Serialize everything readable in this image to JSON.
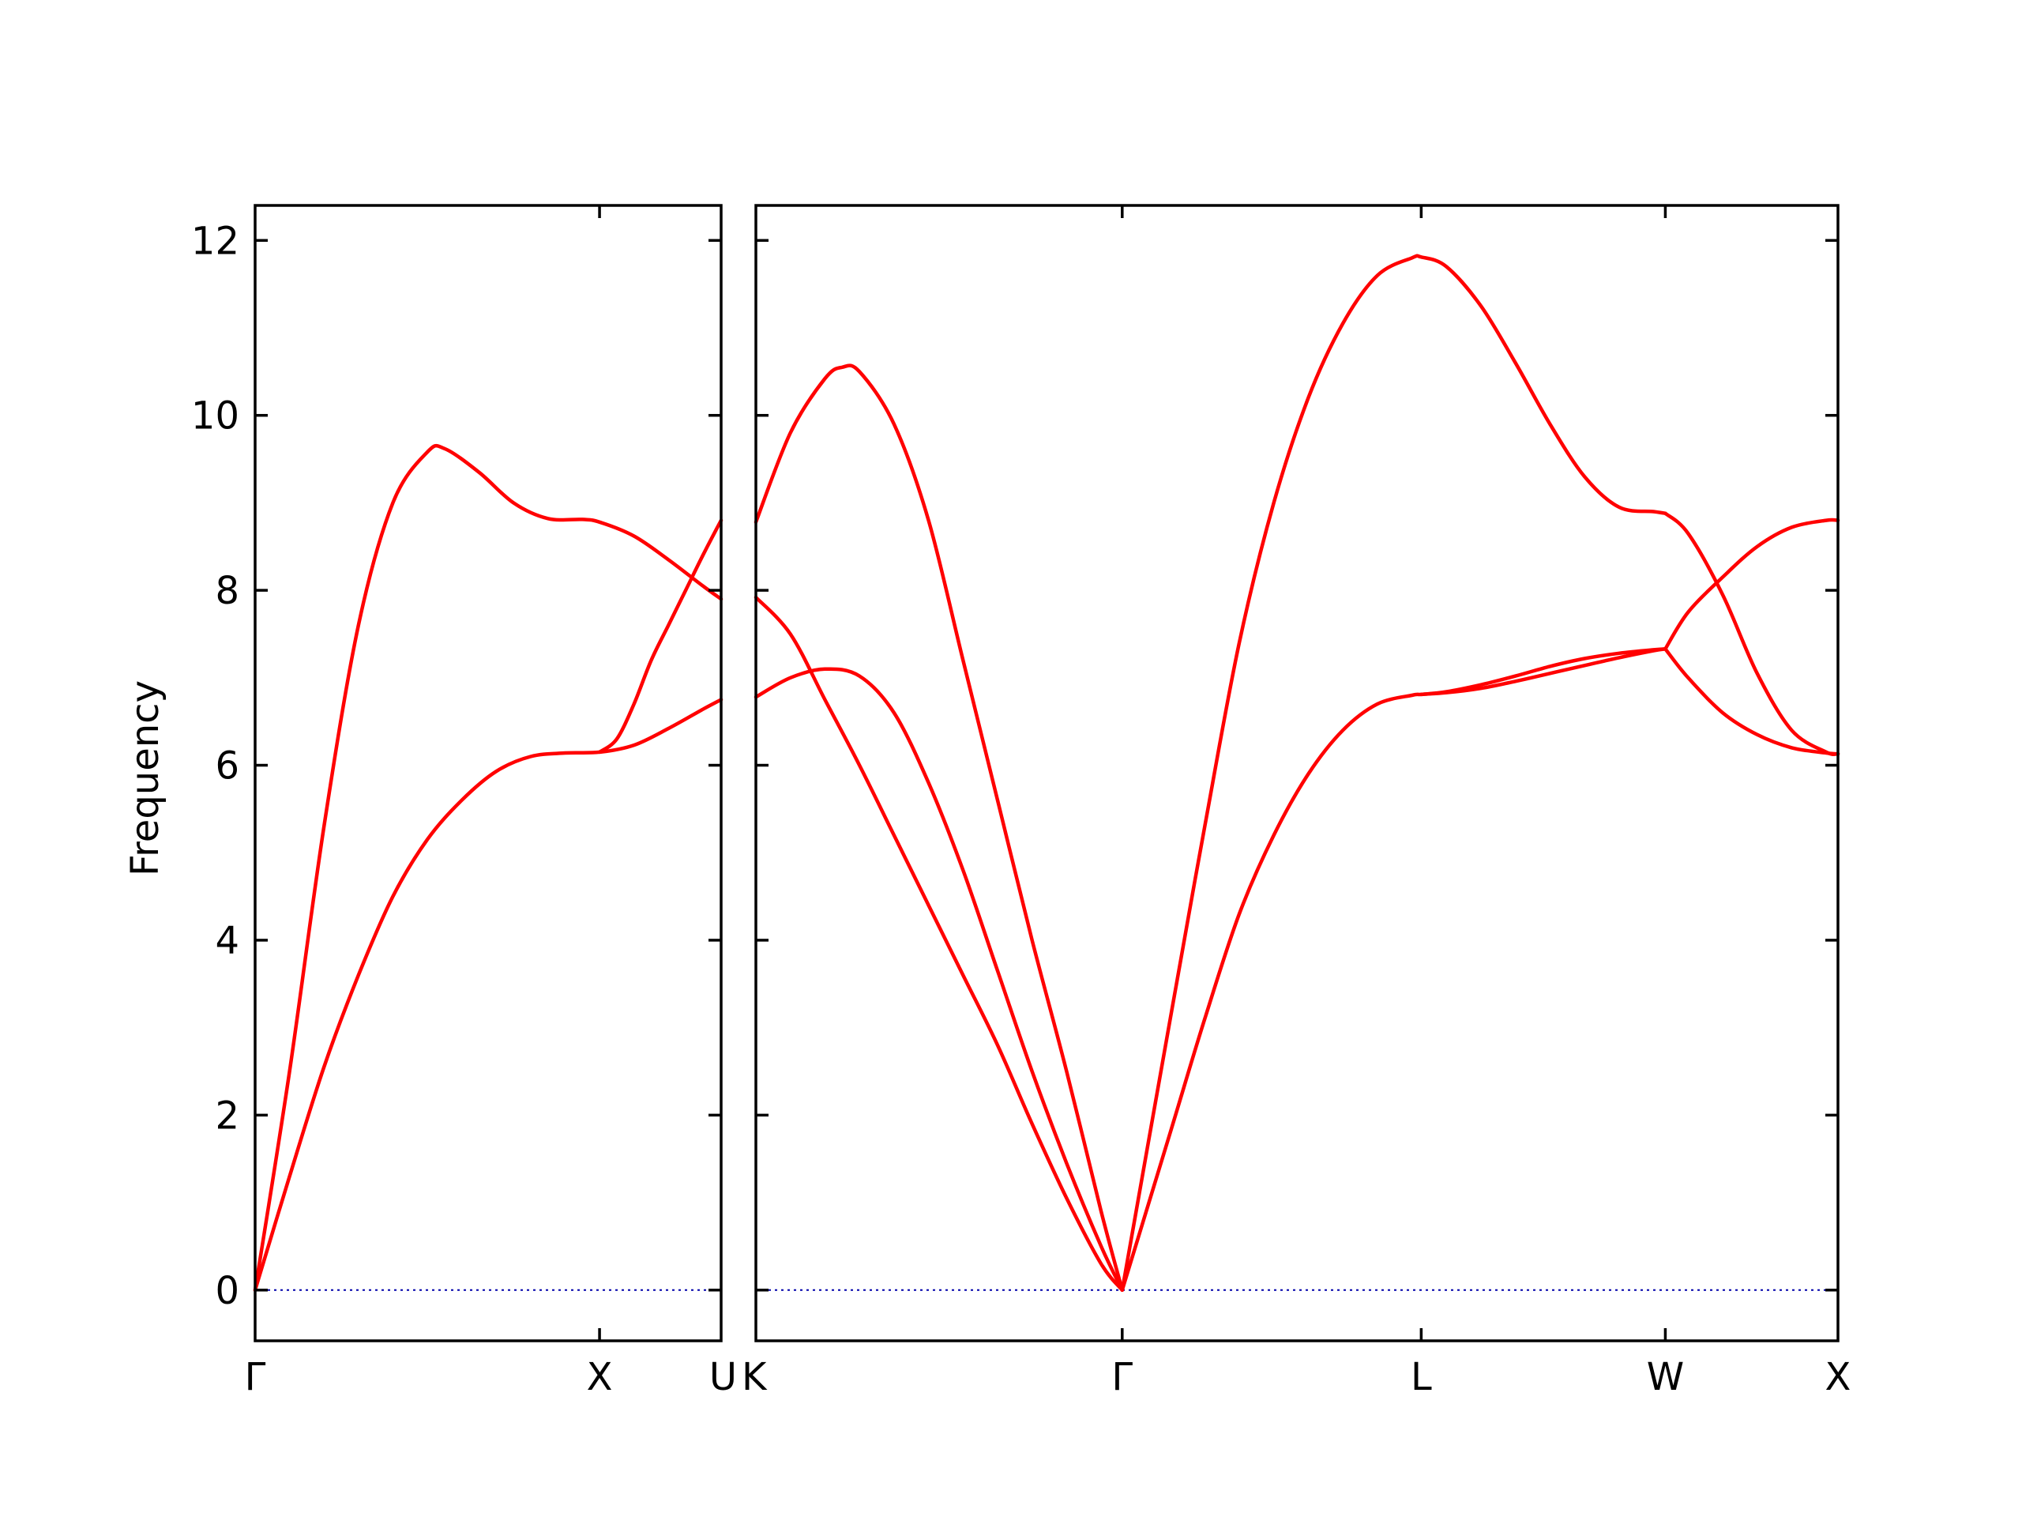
{
  "chart_data": {
    "type": "line",
    "ylabel": "Frequency",
    "ylim": [
      -0.58,
      12.4
    ],
    "yticks": [
      0,
      2,
      4,
      6,
      8,
      10,
      12
    ],
    "band_color": "#ff0000",
    "zero_line_color": "#0000aa",
    "grid": false,
    "legend": "none",
    "panels": [
      {
        "name": "left",
        "xticks": [
          {
            "label": "Γ",
            "x": 0
          },
          {
            "label": "X",
            "x": 1
          },
          {
            "label": "U",
            "x": 1.353
          }
        ],
        "xlim": [
          0,
          1.353
        ],
        "series": [
          {
            "x": [
              0,
              0.1,
              0.2,
              0.3,
              0.4,
              0.5,
              0.55,
              0.65,
              0.75,
              0.85,
              0.95,
              1.0,
              1.1,
              1.2,
              1.3,
              1.353
            ],
            "y": [
              0,
              2.5,
              5.3,
              7.6,
              9.0,
              9.58,
              9.62,
              9.35,
              9.0,
              8.82,
              8.81,
              8.78,
              8.62,
              8.35,
              8.05,
              7.9
            ]
          },
          {
            "x": [
              0,
              0.1,
              0.2,
              0.3,
              0.4,
              0.5,
              0.6,
              0.7,
              0.8,
              0.9,
              1.0,
              1.1,
              1.2,
              1.3,
              1.353
            ],
            "y": [
              0,
              1.3,
              2.55,
              3.6,
              4.5,
              5.15,
              5.6,
              5.93,
              6.1,
              6.14,
              6.15,
              6.23,
              6.42,
              6.64,
              6.75
            ]
          },
          {
            "x": [
              1.0,
              1.05,
              1.1,
              1.15,
              1.2,
              1.25,
              1.3,
              1.353
            ],
            "y": [
              6.15,
              6.3,
              6.7,
              7.2,
              7.6,
              8.0,
              8.4,
              8.8
            ]
          }
        ]
      },
      {
        "name": "right",
        "xticks": [
          {
            "label": "K",
            "x": 0
          },
          {
            "label": "Γ",
            "x": 1.061
          },
          {
            "label": "L",
            "x": 1.927
          },
          {
            "label": "W",
            "x": 2.634
          },
          {
            "label": "X",
            "x": 3.134
          }
        ],
        "xlim": [
          0,
          3.134
        ],
        "series": [
          {
            "x": [
              0,
              0.1,
              0.2,
              0.25,
              0.3,
              0.4,
              0.5,
              0.6,
              0.7,
              0.8,
              0.9,
              1.0,
              1.061
            ],
            "y": [
              8.78,
              9.8,
              10.42,
              10.55,
              10.5,
              9.9,
              8.8,
              7.2,
              5.6,
              4.0,
              2.5,
              0.9,
              0
            ]
          },
          {
            "x": [
              0,
              0.1,
              0.2,
              0.3,
              0.4,
              0.5,
              0.6,
              0.7,
              0.8,
              0.9,
              1.0,
              1.061
            ],
            "y": [
              6.78,
              7.0,
              7.1,
              7.02,
              6.6,
              5.8,
              4.8,
              3.65,
              2.5,
              1.45,
              0.5,
              0
            ]
          },
          {
            "x": [
              0,
              0.1,
              0.2,
              0.3,
              0.4,
              0.5,
              0.6,
              0.7,
              0.8,
              0.9,
              1.0,
              1.061
            ],
            "y": [
              7.92,
              7.5,
              6.75,
              6.0,
              5.2,
              4.4,
              3.6,
              2.8,
              1.9,
              1.05,
              0.3,
              0
            ]
          },
          {
            "x": [
              1.061,
              1.2,
              1.3,
              1.4,
              1.5,
              1.6,
              1.7,
              1.8,
              1.9,
              1.927,
              2.0,
              2.1,
              2.2,
              2.3,
              2.4,
              2.5,
              2.6,
              2.634
            ],
            "y": [
              0,
              3.1,
              5.3,
              7.4,
              9.0,
              10.2,
              11.05,
              11.6,
              11.8,
              11.81,
              11.7,
              11.25,
              10.6,
              9.9,
              9.3,
              8.95,
              8.9,
              8.88
            ]
          },
          {
            "x": [
              1.061,
              1.2,
              1.3,
              1.4,
              1.5,
              1.6,
              1.7,
              1.8,
              1.9,
              1.927,
              2.0,
              2.1,
              2.2,
              2.3,
              2.4,
              2.5,
              2.6,
              2.634
            ],
            "y": [
              0,
              1.8,
              3.1,
              4.3,
              5.2,
              5.9,
              6.4,
              6.7,
              6.8,
              6.81,
              6.83,
              6.88,
              6.96,
              7.05,
              7.14,
              7.23,
              7.31,
              7.33
            ]
          },
          {
            "x": [
              1.927,
              2.0,
              2.1,
              2.2,
              2.3,
              2.4,
              2.5,
              2.6,
              2.634
            ],
            "y": [
              6.81,
              6.84,
              6.92,
              7.02,
              7.13,
              7.22,
              7.28,
              7.32,
              7.33
            ]
          },
          {
            "x": [
              2.634,
              2.7,
              2.8,
              2.9,
              3.0,
              3.1,
              3.134
            ],
            "y": [
              8.88,
              8.65,
              7.95,
              7.05,
              6.4,
              6.15,
              6.13
            ]
          },
          {
            "x": [
              2.634,
              2.7,
              2.8,
              2.9,
              3.0,
              3.1,
              3.134
            ],
            "y": [
              7.33,
              7.75,
              8.15,
              8.5,
              8.72,
              8.8,
              8.8
            ]
          },
          {
            "x": [
              2.634,
              2.7,
              2.8,
              2.9,
              3.0,
              3.1,
              3.134
            ],
            "y": [
              7.33,
              7.0,
              6.6,
              6.35,
              6.2,
              6.14,
              6.13
            ]
          }
        ]
      }
    ]
  }
}
